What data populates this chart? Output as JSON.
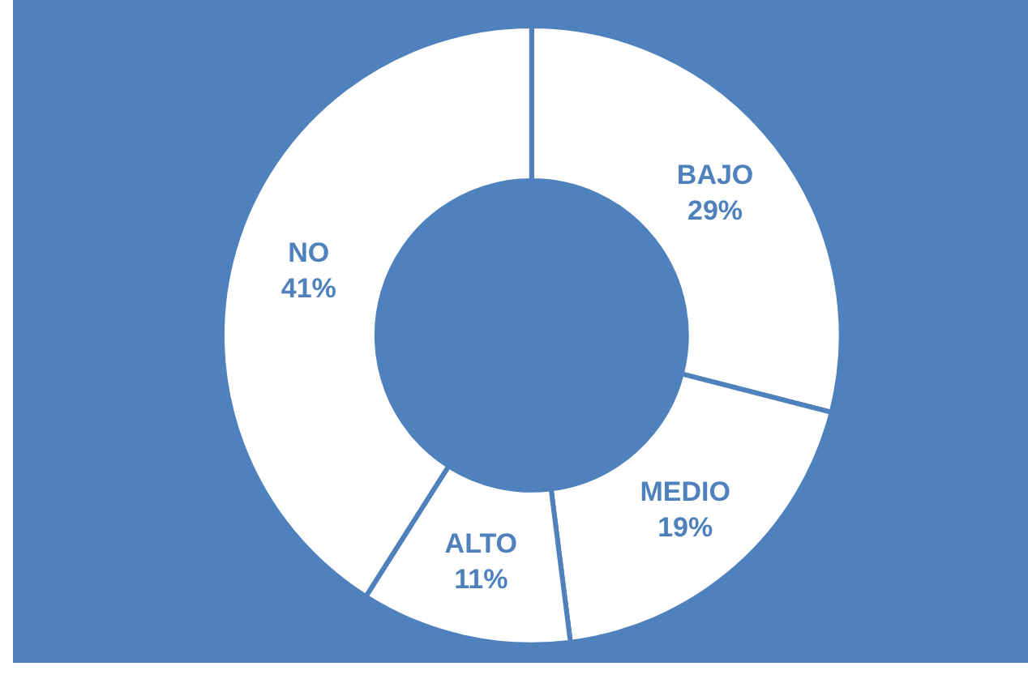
{
  "chart_data": {
    "type": "donut",
    "categories": [
      "BAJO",
      "MEDIO",
      "ALTO",
      "NO"
    ],
    "values": [
      29,
      19,
      11,
      41
    ],
    "value_labels": [
      "29%",
      "19%",
      "11%",
      "41%"
    ],
    "colors": [
      "#ffffff",
      "#ffffff",
      "#ffffff",
      "#ffffff"
    ],
    "legend": false
  }
}
